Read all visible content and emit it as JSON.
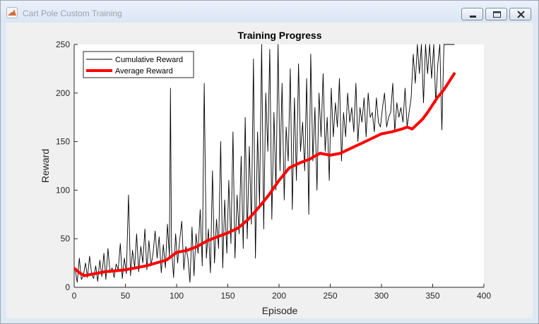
{
  "window": {
    "title": "Cart Pole Custom Training",
    "app_icon": "matlab-icon",
    "buttons": [
      "minimize-icon",
      "maximize-icon",
      "close-icon"
    ]
  },
  "chart_data": {
    "type": "line",
    "title": "Training Progress",
    "xlabel": "Episode",
    "ylabel": "Reward",
    "xlim": [
      0,
      400
    ],
    "ylim": [
      0,
      250
    ],
    "xticks": [
      0,
      50,
      100,
      150,
      200,
      250,
      300,
      350,
      400
    ],
    "yticks": [
      0,
      50,
      100,
      150,
      200,
      250
    ],
    "grid": false,
    "legend_position": "top-left",
    "series": [
      {
        "name": "Cumulative Reward",
        "color": "#000000",
        "line_width": "thin",
        "x": [
          1,
          3,
          5,
          7,
          9,
          11,
          13,
          15,
          17,
          19,
          21,
          23,
          25,
          27,
          29,
          31,
          33,
          35,
          37,
          39,
          41,
          43,
          45,
          47,
          49,
          51,
          53,
          55,
          57,
          59,
          61,
          63,
          65,
          67,
          69,
          71,
          73,
          75,
          77,
          79,
          81,
          83,
          85,
          87,
          89,
          91,
          93,
          94,
          95,
          97,
          99,
          101,
          103,
          105,
          107,
          109,
          111,
          113,
          115,
          117,
          119,
          121,
          123,
          125,
          127,
          129,
          131,
          133,
          135,
          137,
          139,
          141,
          143,
          145,
          147,
          149,
          151,
          153,
          155,
          157,
          159,
          161,
          163,
          165,
          167,
          169,
          171,
          173,
          175,
          177,
          179,
          181,
          183,
          185,
          187,
          189,
          191,
          193,
          195,
          197,
          199,
          201,
          203,
          205,
          207,
          209,
          211,
          213,
          215,
          217,
          219,
          221,
          223,
          225,
          227,
          229,
          231,
          233,
          235,
          237,
          239,
          241,
          243,
          245,
          247,
          249,
          251,
          253,
          255,
          257,
          259,
          261,
          263,
          265,
          267,
          269,
          271,
          273,
          275,
          277,
          279,
          281,
          283,
          285,
          287,
          289,
          291,
          293,
          295,
          297,
          299,
          301,
          303,
          305,
          307,
          309,
          311,
          313,
          315,
          317,
          319,
          321,
          323,
          325,
          327,
          329,
          331,
          333,
          335,
          337,
          339,
          341,
          343,
          345,
          347,
          349,
          351,
          353,
          355,
          357,
          359,
          361,
          363,
          365,
          367,
          369,
          371
        ],
        "y": [
          18,
          5,
          30,
          8,
          12,
          25,
          10,
          32,
          14,
          9,
          22,
          6,
          28,
          11,
          35,
          8,
          40,
          15,
          20,
          10,
          24,
          18,
          45,
          9,
          30,
          14,
          95,
          12,
          38,
          20,
          55,
          16,
          42,
          25,
          60,
          18,
          48,
          22,
          35,
          58,
          30,
          52,
          15,
          44,
          20,
          65,
          32,
          205,
          40,
          10,
          55,
          25,
          48,
          68,
          18,
          42,
          30,
          5,
          62,
          12,
          55,
          35,
          80,
          22,
          210,
          30,
          60,
          15,
          120,
          25,
          70,
          40,
          150,
          20,
          90,
          35,
          110,
          45,
          160,
          30,
          95,
          55,
          135,
          40,
          175,
          50,
          145,
          65,
          235,
          30,
          160,
          85,
          250,
          60,
          200,
          140,
          245,
          70,
          180,
          100,
          250,
          120,
          210,
          90,
          165,
          130,
          225,
          80,
          195,
          110,
          230,
          140,
          170,
          120,
          215,
          75,
          240,
          130,
          185,
          100,
          200,
          155,
          220,
          140,
          175,
          110,
          205,
          155,
          190,
          165,
          215,
          130,
          180,
          155,
          200,
          170,
          185,
          160,
          210,
          150,
          185,
          170,
          195,
          155,
          200,
          175,
          180,
          160,
          195,
          170,
          165,
          185,
          200,
          165,
          175,
          180,
          210,
          160,
          190,
          175,
          185,
          170,
          205,
          165,
          180,
          195,
          240,
          210,
          250,
          220,
          250,
          190,
          250,
          220,
          250,
          215,
          250,
          190,
          230,
          250,
          162,
          250,
          250,
          250,
          250,
          250,
          250
        ]
      },
      {
        "name": "Average Reward",
        "color": "#ff0000",
        "line_width": "thick",
        "x": [
          1,
          5,
          10,
          15,
          20,
          25,
          30,
          40,
          50,
          60,
          70,
          80,
          90,
          95,
          100,
          110,
          120,
          130,
          140,
          150,
          160,
          170,
          180,
          190,
          200,
          210,
          220,
          230,
          240,
          250,
          260,
          270,
          280,
          290,
          300,
          310,
          320,
          325,
          330,
          335,
          340,
          345,
          350,
          355,
          360,
          365,
          371
        ],
        "y": [
          19,
          15,
          12,
          13,
          14,
          15,
          16,
          17,
          18,
          20,
          22,
          25,
          28,
          32,
          36,
          38,
          42,
          48,
          52,
          56,
          61,
          70,
          82,
          95,
          110,
          123,
          128,
          132,
          138,
          136,
          138,
          143,
          148,
          153,
          158,
          160,
          163,
          165,
          163,
          168,
          173,
          180,
          188,
          196,
          202,
          210,
          220
        ]
      }
    ]
  }
}
